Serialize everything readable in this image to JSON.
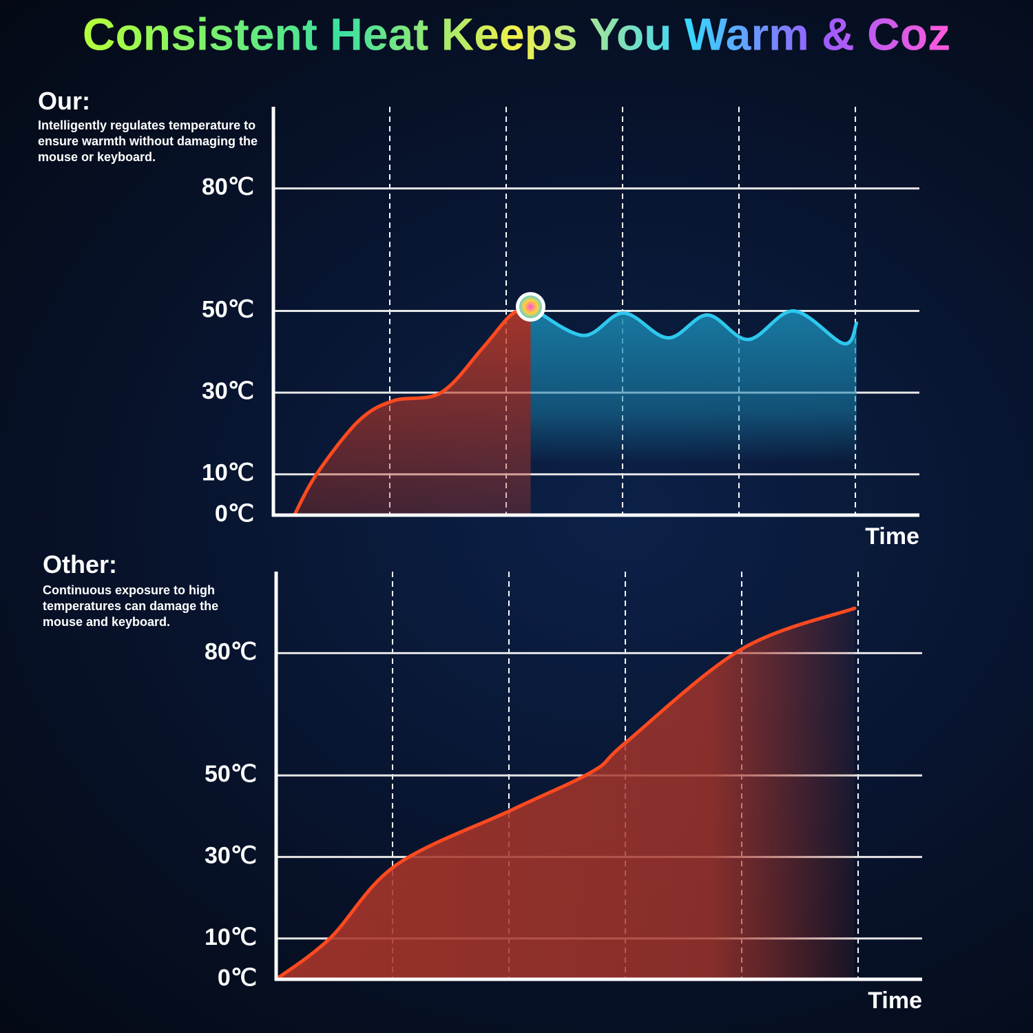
{
  "title": "Consistent Heat Keeps You Warm & Coz",
  "chart_data": [
    {
      "type": "line",
      "heading": "Our:",
      "description": "Intelligently regulates temperature to ensure warmth without damaging the mouse or keyboard.",
      "x_label": "Time",
      "xlim": [
        0,
        5.55
      ],
      "xticks": [
        1,
        2,
        3,
        4,
        5
      ],
      "ylim": [
        0,
        100
      ],
      "yticks": [
        {
          "value": 0,
          "label": "0℃"
        },
        {
          "value": 10,
          "label": "10℃"
        },
        {
          "value": 30,
          "label": "30℃"
        },
        {
          "value": 50,
          "label": "50℃"
        },
        {
          "value": 80,
          "label": "80℃"
        }
      ],
      "series": [
        {
          "color": "#ff4a1f",
          "x": [
            0.18,
            0.37,
            0.73,
            1.03,
            1.44,
            1.8,
            2.04,
            2.21
          ],
          "values": [
            0,
            10,
            23,
            28,
            30,
            41,
            49,
            51
          ]
        },
        {
          "color": "#2ec8ee",
          "x": [
            2.21,
            2.66,
            3.01,
            3.39,
            3.73,
            4.08,
            4.47,
            4.9,
            5.01
          ],
          "values": [
            51,
            44,
            49.5,
            43.4,
            49,
            43,
            50,
            42,
            47
          ]
        }
      ]
    },
    {
      "type": "line",
      "heading": "Other:",
      "description": "Continuous exposure to high temperatures can damage the mouse and keyboard.",
      "x_label": "Time",
      "xlim": [
        0,
        5.55
      ],
      "xticks": [
        1,
        2,
        3,
        4,
        5
      ],
      "ylim": [
        0,
        100
      ],
      "yticks": [
        {
          "value": 0,
          "label": "0℃"
        },
        {
          "value": 10,
          "label": "10℃"
        },
        {
          "value": 30,
          "label": "30℃"
        },
        {
          "value": 50,
          "label": "50℃"
        },
        {
          "value": 80,
          "label": "80℃"
        }
      ],
      "series": [
        {
          "color": "#ff4a1f",
          "x": [
            0,
            0.46,
            1.03,
            2.02,
            2.72,
            3.0,
            4.0,
            4.97
          ],
          "values": [
            0,
            10,
            28,
            41.5,
            51,
            58,
            81,
            91
          ]
        }
      ]
    }
  ]
}
